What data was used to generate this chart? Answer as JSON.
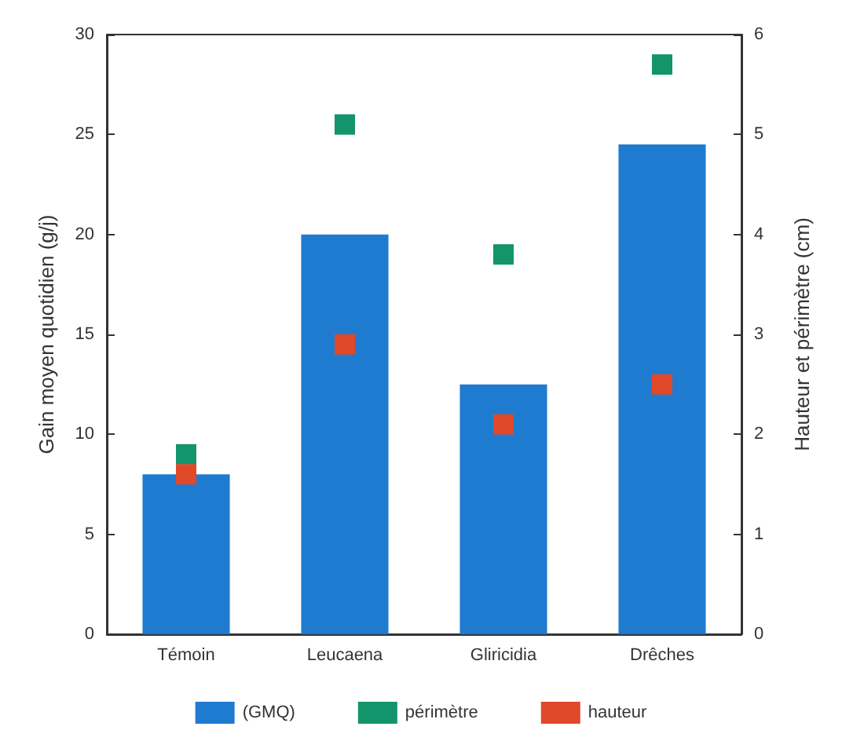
{
  "chart_data": {
    "type": "bar",
    "ylabel": "Gain moyen quotidien (g/j)",
    "y2label": "Hauteur et périmètre (cm)",
    "categories": [
      "Témoin",
      "Leucaena",
      "Gliricidia",
      "Drêches"
    ],
    "series": [
      {
        "name": "(GMQ)",
        "color": "#1f7bd0",
        "values": [
          8,
          20,
          12.5,
          24.5
        ]
      },
      {
        "name": "périmètre",
        "type": "scatter",
        "axis": "y2",
        "color": "#13946a",
        "x": [
          "Témoin",
          "Leucaena",
          "Gliricidia",
          "Drêches"
        ],
        "values": [
          1.8,
          5.1,
          3.8,
          5.7
        ]
      },
      {
        "name": "hauteur",
        "type": "scatter",
        "axis": "y2",
        "color": "#e0482a",
        "x": [
          "Témoin",
          "Leucaena",
          "Gliricidia",
          "Drêches"
        ],
        "values": [
          1.6,
          2.9,
          2.1,
          2.5
        ]
      }
    ],
    "ylim": [
      0,
      30
    ],
    "yticks": [
      0,
      5,
      10,
      15,
      20,
      25,
      30
    ],
    "y2lim": [
      0,
      6
    ],
    "y2ticks": [
      0,
      1,
      2,
      3,
      4,
      5,
      6
    ],
    "grid": false,
    "legend": "bottom",
    "marker": "square"
  }
}
